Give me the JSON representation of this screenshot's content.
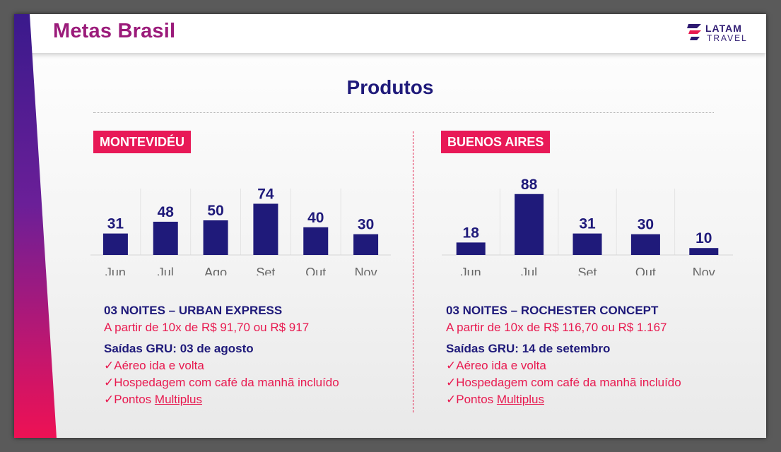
{
  "header": {
    "title": "Metas Brasil"
  },
  "logo": {
    "line1": "LATAM",
    "line2": "TRAVEL"
  },
  "section_title": "Produtos",
  "colors": {
    "bar": "#1f1a7a",
    "tag": "#e81957",
    "accent": "#e8194f",
    "title": "#9b1b7a"
  },
  "chart_data": [
    {
      "type": "bar",
      "title": "MONTEVIDÉU",
      "categories": [
        "Jun",
        "Jul",
        "Ago",
        "Set",
        "Out",
        "Nov"
      ],
      "values": [
        31,
        48,
        50,
        74,
        40,
        30
      ],
      "xlabel": "",
      "ylabel": "",
      "ylim": [
        0,
        100
      ],
      "grid": false
    },
    {
      "type": "bar",
      "title": "BUENOS AIRES",
      "categories": [
        "Jun",
        "Jul",
        "Set",
        "Out",
        "Nov"
      ],
      "values": [
        18,
        88,
        31,
        30,
        10
      ],
      "xlabel": "",
      "ylabel": "",
      "ylim": [
        0,
        100
      ],
      "grid": false
    }
  ],
  "packages": [
    {
      "title": "03 NOITES – URBAN EXPRESS",
      "price": "A partir de 10x de R$ 91,70 ou R$ 917",
      "departure": "Saídas GRU: 03 de agosto",
      "features": [
        "✓Aéreo ida e volta",
        "✓Hospedagem com café da manhã incluído"
      ],
      "points_prefix": "✓Pontos ",
      "points_name": "Multiplus"
    },
    {
      "title": "03 NOITES – ROCHESTER CONCEPT",
      "price": "A partir de 10x de R$ 116,70 ou R$ 1.167",
      "departure": "Saídas GRU: 14 de setembro",
      "features": [
        "✓Aéreo ida e volta",
        "✓Hospedagem com café da manhã incluído"
      ],
      "points_prefix": "✓Pontos ",
      "points_name": "Multiplus"
    }
  ]
}
